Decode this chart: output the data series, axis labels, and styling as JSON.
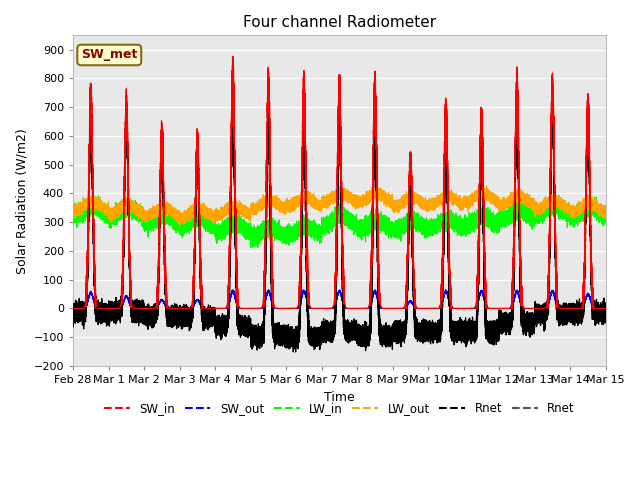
{
  "title": "Four channel Radiometer",
  "xlabel": "Time",
  "ylabel": "Solar Radiation (W/m2)",
  "ylim": [
    -200,
    950
  ],
  "yticks": [
    -200,
    -100,
    0,
    100,
    200,
    300,
    400,
    500,
    600,
    700,
    800,
    900
  ],
  "plot_bg_color": "#e8e8e8",
  "annotation_label": "SW_met",
  "annotation_bg": "#ffffcc",
  "annotation_border": "#8B6914",
  "xstart": 0,
  "xend": 15.0,
  "xtick_labels": [
    "Feb 28",
    "Mar 1",
    "Mar 2",
    "Mar 3",
    "Mar 4",
    "Mar 5",
    "Mar 6",
    "Mar 7",
    "Mar 8",
    "Mar 9",
    "Mar 10",
    "Mar 11",
    "Mar 12",
    "Mar 13",
    "Mar 14",
    "Mar 15"
  ],
  "xtick_positions": [
    0,
    1,
    2,
    3,
    4,
    5,
    6,
    7,
    8,
    9,
    10,
    11,
    12,
    13,
    14,
    15
  ],
  "sw_in_peaks": [
    740,
    700,
    620,
    590,
    820,
    780,
    775,
    765,
    770,
    520,
    700,
    670,
    780,
    765,
    705
  ],
  "sw_out_peaks": [
    55,
    42,
    30,
    30,
    60,
    60,
    60,
    60,
    60,
    25,
    60,
    60,
    60,
    60,
    50
  ],
  "lw_out_bases": [
    355,
    345,
    335,
    330,
    340,
    360,
    370,
    385,
    385,
    370,
    375,
    385,
    375,
    360,
    350
  ],
  "lw_in_bases": [
    340,
    335,
    310,
    300,
    280,
    265,
    270,
    305,
    290,
    290,
    295,
    305,
    325,
    340,
    335
  ],
  "night_rnet": -100
}
